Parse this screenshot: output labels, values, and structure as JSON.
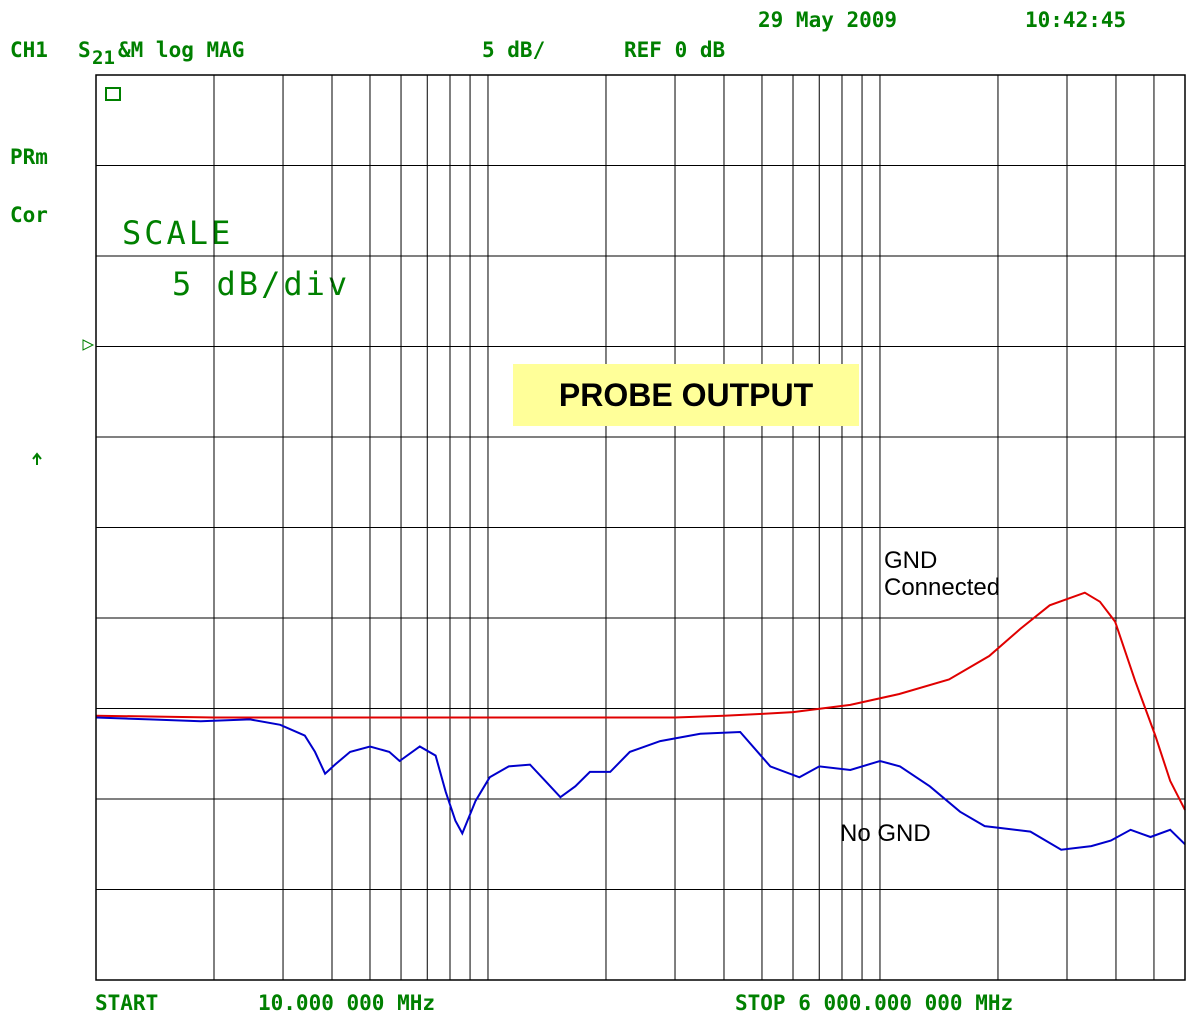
{
  "chart_data": {
    "type": "line",
    "title": "PROBE OUTPUT",
    "channel": "CH1",
    "measurement": "S",
    "measurement_sub": "21",
    "measurement_rest": "&M log MAG",
    "scale_per_div": "5 dB/",
    "reference": "REF 0 dB",
    "date": "29 May 2009",
    "time": "10:42:45",
    "status_1": "PRm",
    "status_2": "Cor",
    "scale_title": "SCALE",
    "scale_value": "5 dB/div",
    "start_label": "START",
    "start_value": "10.000 000 MHz",
    "stop_label": "STOP 6 000.000 000 MHz",
    "xlog": true,
    "xlim": [
      10,
      6000
    ],
    "ylim": [
      -35,
      15
    ],
    "xgrid": [
      20,
      30,
      40,
      50,
      60,
      70,
      80,
      90,
      100,
      200,
      300,
      400,
      500,
      600,
      700,
      800,
      900,
      1000,
      2000,
      3000,
      4000,
      5000
    ],
    "ygrid": [
      15,
      10,
      5,
      0,
      -5,
      -10,
      -15,
      -20,
      -25,
      -30,
      -35
    ],
    "series": [
      {
        "name": "GND Connected",
        "color": "#e00000",
        "x": [
          10,
          20,
          50,
          100,
          200,
          300,
          400,
          500,
          600,
          840,
          1120,
          1500,
          1900,
          2280,
          2710,
          3330,
          3640,
          3980,
          4480,
          5040,
          5500,
          6000
        ],
        "values": [
          -20.4,
          -20.5,
          -20.5,
          -20.5,
          -20.5,
          -20.5,
          -20.4,
          -20.3,
          -20.2,
          -19.8,
          -19.2,
          -18.4,
          -17.1,
          -15.6,
          -14.3,
          -13.6,
          -14.1,
          -15.2,
          -18.5,
          -21.5,
          -24.0,
          -25.6
        ]
      },
      {
        "name": "No GND",
        "color": "#0000cc",
        "x": [
          10,
          13.7,
          18.5,
          24.7,
          29.5,
          34.1,
          36.2,
          38.4,
          40.7,
          44.5,
          50,
          56,
          59.5,
          67,
          73.5,
          78,
          82.6,
          86,
          93,
          101,
          113,
          128,
          140,
          153,
          167,
          182,
          205,
          230,
          275,
          348,
          440,
          525,
          623,
          700,
          840,
          1000,
          1125,
          1340,
          1600,
          1850,
          2030,
          2420,
          2900,
          3460,
          3880,
          4360,
          4900,
          5500,
          6000
        ],
        "values": [
          -20.5,
          -20.6,
          -20.7,
          -20.6,
          -20.9,
          -21.5,
          -22.4,
          -23.6,
          -23.1,
          -22.4,
          -22.1,
          -22.4,
          -22.9,
          -22.1,
          -22.6,
          -24.6,
          -26.2,
          -26.9,
          -25.1,
          -23.8,
          -23.2,
          -23.1,
          -24.0,
          -24.9,
          -24.3,
          -23.5,
          -23.5,
          -22.4,
          -21.8,
          -21.4,
          -21.3,
          -23.2,
          -23.8,
          -23.2,
          -23.4,
          -22.9,
          -23.2,
          -24.3,
          -25.7,
          -26.5,
          -26.6,
          -26.8,
          -27.8,
          -27.6,
          -27.3,
          -26.7,
          -27.1,
          -26.7,
          -27.5
        ]
      }
    ]
  }
}
